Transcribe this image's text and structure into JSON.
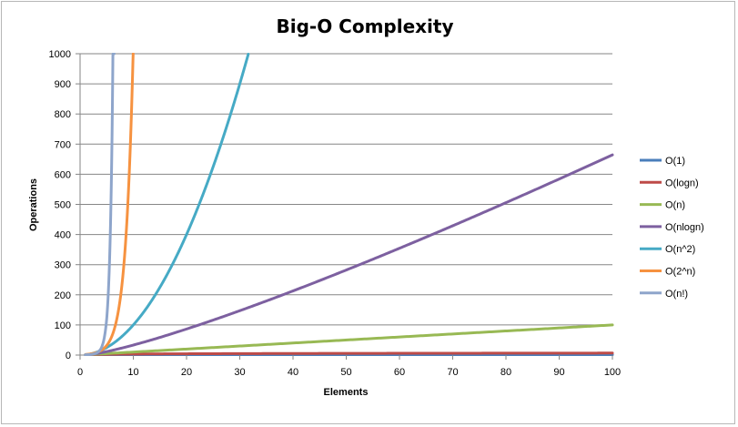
{
  "chart_data": {
    "type": "line",
    "title": "Big-O Complexity",
    "xlabel": "Elements",
    "ylabel": "Operations",
    "xlim": [
      0,
      100
    ],
    "ylim": [
      0,
      1000
    ],
    "x_ticks": [
      0,
      10,
      20,
      30,
      40,
      50,
      60,
      70,
      80,
      90,
      100
    ],
    "y_ticks": [
      0,
      100,
      200,
      300,
      400,
      500,
      600,
      700,
      800,
      900,
      1000
    ],
    "grid": "horizontal",
    "legend_position": "right",
    "series": [
      {
        "name": "O(1)",
        "color": "#4a7ebb",
        "formula": "constant",
        "x": [
          1,
          100
        ],
        "y": [
          1,
          1
        ]
      },
      {
        "name": "O(logn)",
        "color": "#be4b48",
        "formula": "log2(n)",
        "x": [
          1,
          10,
          20,
          40,
          60,
          80,
          100
        ],
        "y": [
          0,
          3.32,
          4.32,
          5.32,
          5.91,
          6.32,
          6.64
        ]
      },
      {
        "name": "O(n)",
        "color": "#98b954",
        "formula": "n",
        "x": [
          1,
          100
        ],
        "y": [
          1,
          100
        ]
      },
      {
        "name": "O(nlogn)",
        "color": "#7d60a0",
        "formula": "n*log2(n)",
        "x": [
          1,
          10,
          20,
          40,
          60,
          80,
          100
        ],
        "y": [
          0,
          33.2,
          86.4,
          212.9,
          354.4,
          505.8,
          664.4
        ]
      },
      {
        "name": "O(n^2)",
        "color": "#46aac5",
        "formula": "n^2",
        "x": [
          1,
          5,
          10,
          15,
          20,
          25,
          30,
          31.6
        ],
        "y": [
          1,
          25,
          100,
          225,
          400,
          625,
          900,
          1000
        ]
      },
      {
        "name": "O(2^n)",
        "color": "#f69240",
        "formula": "2^n",
        "x": [
          1,
          3,
          5,
          7,
          8,
          9,
          9.97
        ],
        "y": [
          2,
          8,
          32,
          128,
          256,
          512,
          1000
        ]
      },
      {
        "name": "O(n!)",
        "color": "#8ea5cb",
        "formula": "n!",
        "x": [
          1,
          2,
          3,
          4,
          5,
          6,
          6.4
        ],
        "y": [
          1,
          2,
          6,
          24,
          120,
          720,
          1000
        ]
      }
    ]
  }
}
